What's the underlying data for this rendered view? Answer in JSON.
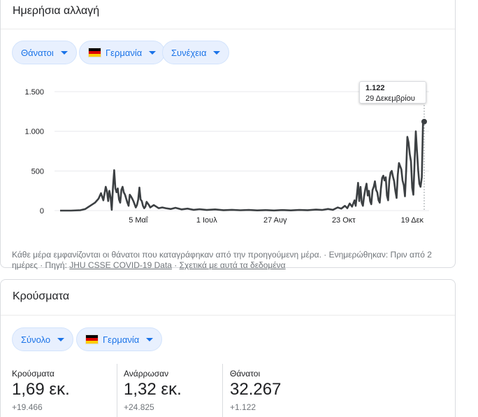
{
  "daily_card": {
    "title": "Ημερήσια αλλαγή",
    "chips": [
      {
        "label": "Θάνατοι",
        "flag": false
      },
      {
        "label": "Γερμανία",
        "flag": true
      },
      {
        "label": "Συνέχεια",
        "flag": false
      }
    ],
    "tooltip": {
      "value": "1.122",
      "date": "29 Δεκεμβρίου"
    },
    "footnote": {
      "text": "Κάθε μέρα εμφανίζονται οι θάνατοι που καταγράφηκαν από την προηγούμενη μέρα. · Ενημερώθηκαν: Πριν από 2 ημέρες · Πηγή: ",
      "source_link": "JHU CSSE COVID-19 Data",
      "separator": " · ",
      "about_link": "Σχετικά με αυτά τα δεδομένα"
    }
  },
  "chart_data": {
    "type": "line",
    "title": "",
    "xlabel": "",
    "ylabel": "",
    "x_start": "2020-03-01",
    "x_end": "2020-12-29",
    "x_ticks": [
      {
        "date": "2020-05-05",
        "label": "5 Μαΐ"
      },
      {
        "date": "2020-07-01",
        "label": "1 Ιουλ"
      },
      {
        "date": "2020-08-27",
        "label": "27 Αυγ"
      },
      {
        "date": "2020-10-23",
        "label": "23 Οκτ"
      },
      {
        "date": "2020-12-19",
        "label": "19 Δεκ"
      }
    ],
    "y_ticks": [
      {
        "value": 0,
        "label": "0"
      },
      {
        "value": 500,
        "label": "500"
      },
      {
        "value": 1000,
        "label": "1.000"
      },
      {
        "value": 1500,
        "label": "1.500"
      }
    ],
    "ylim": [
      0,
      1500
    ],
    "grid": true,
    "series": [
      {
        "color": "#3c4043",
        "points": [
          [
            "2020-03-01",
            0
          ],
          [
            "2020-03-10",
            0
          ],
          [
            "2020-03-18",
            5
          ],
          [
            "2020-03-22",
            20
          ],
          [
            "2020-03-26",
            60
          ],
          [
            "2020-03-30",
            100
          ],
          [
            "2020-04-02",
            150
          ],
          [
            "2020-04-04",
            220
          ],
          [
            "2020-04-06",
            130
          ],
          [
            "2020-04-08",
            300
          ],
          [
            "2020-04-09",
            240
          ],
          [
            "2020-04-10",
            120
          ],
          [
            "2020-04-11",
            250
          ],
          [
            "2020-04-12",
            170
          ],
          [
            "2020-04-13",
            10
          ],
          [
            "2020-04-14",
            300
          ],
          [
            "2020-04-15",
            510
          ],
          [
            "2020-04-16",
            280
          ],
          [
            "2020-04-17",
            230
          ],
          [
            "2020-04-18",
            280
          ],
          [
            "2020-04-19",
            140
          ],
          [
            "2020-04-20",
            100
          ],
          [
            "2020-04-21",
            260
          ],
          [
            "2020-04-22",
            300
          ],
          [
            "2020-04-23",
            230
          ],
          [
            "2020-04-24",
            200
          ],
          [
            "2020-04-25",
            150
          ],
          [
            "2020-04-26",
            100
          ],
          [
            "2020-04-27",
            60
          ],
          [
            "2020-04-28",
            200
          ],
          [
            "2020-04-29",
            180
          ],
          [
            "2020-04-30",
            150
          ],
          [
            "2020-05-01",
            120
          ],
          [
            "2020-05-02",
            80
          ],
          [
            "2020-05-03",
            40
          ],
          [
            "2020-05-04",
            70
          ],
          [
            "2020-05-05",
            140
          ],
          [
            "2020-05-06",
            290
          ],
          [
            "2020-05-07",
            140
          ],
          [
            "2020-05-08",
            120
          ],
          [
            "2020-05-09",
            60
          ],
          [
            "2020-05-10",
            30
          ],
          [
            "2020-05-11",
            50
          ],
          [
            "2020-05-12",
            110
          ],
          [
            "2020-05-13",
            90
          ],
          [
            "2020-05-14",
            70
          ],
          [
            "2020-05-15",
            40
          ],
          [
            "2020-05-18",
            70
          ],
          [
            "2020-05-20",
            50
          ],
          [
            "2020-05-22",
            30
          ],
          [
            "2020-05-25",
            40
          ],
          [
            "2020-05-28",
            30
          ],
          [
            "2020-06-01",
            20
          ],
          [
            "2020-06-05",
            35
          ],
          [
            "2020-06-10",
            15
          ],
          [
            "2020-06-15",
            25
          ],
          [
            "2020-06-20",
            10
          ],
          [
            "2020-06-25",
            18
          ],
          [
            "2020-07-01",
            8
          ],
          [
            "2020-07-08",
            15
          ],
          [
            "2020-07-15",
            5
          ],
          [
            "2020-07-22",
            10
          ],
          [
            "2020-07-29",
            4
          ],
          [
            "2020-08-05",
            8
          ],
          [
            "2020-08-12",
            3
          ],
          [
            "2020-08-19",
            6
          ],
          [
            "2020-08-26",
            2
          ],
          [
            "2020-09-02",
            7
          ],
          [
            "2020-09-09",
            3
          ],
          [
            "2020-09-16",
            8
          ],
          [
            "2020-09-23",
            5
          ],
          [
            "2020-09-30",
            12
          ],
          [
            "2020-10-05",
            8
          ],
          [
            "2020-10-10",
            20
          ],
          [
            "2020-10-14",
            10
          ],
          [
            "2020-10-18",
            40
          ],
          [
            "2020-10-21",
            25
          ],
          [
            "2020-10-24",
            60
          ],
          [
            "2020-10-26",
            30
          ],
          [
            "2020-10-28",
            90
          ],
          [
            "2020-10-30",
            50
          ],
          [
            "2020-11-01",
            130
          ],
          [
            "2020-11-02",
            60
          ],
          [
            "2020-11-03",
            200
          ],
          [
            "2020-11-04",
            350
          ],
          [
            "2020-11-05",
            120
          ],
          [
            "2020-11-06",
            300
          ],
          [
            "2020-11-07",
            100
          ],
          [
            "2020-11-08",
            60
          ],
          [
            "2020-11-09",
            180
          ],
          [
            "2020-11-10",
            270
          ],
          [
            "2020-11-11",
            340
          ],
          [
            "2020-11-12",
            190
          ],
          [
            "2020-11-13",
            250
          ],
          [
            "2020-11-14",
            120
          ],
          [
            "2020-11-15",
            80
          ],
          [
            "2020-11-16",
            260
          ],
          [
            "2020-11-17",
            300
          ],
          [
            "2020-11-18",
            370
          ],
          [
            "2020-11-19",
            260
          ],
          [
            "2020-11-20",
            230
          ],
          [
            "2020-11-21",
            130
          ],
          [
            "2020-11-22",
            100
          ],
          [
            "2020-11-23",
            280
          ],
          [
            "2020-11-24",
            410
          ],
          [
            "2020-11-25",
            440
          ],
          [
            "2020-11-26",
            380
          ],
          [
            "2020-11-27",
            420
          ],
          [
            "2020-11-28",
            190
          ],
          [
            "2020-11-29",
            130
          ],
          [
            "2020-11-30",
            380
          ],
          [
            "2020-12-01",
            480
          ],
          [
            "2020-12-02",
            500
          ],
          [
            "2020-12-03",
            430
          ],
          [
            "2020-12-04",
            370
          ],
          [
            "2020-12-05",
            250
          ],
          [
            "2020-12-06",
            160
          ],
          [
            "2020-12-07",
            450
          ],
          [
            "2020-12-08",
            600
          ],
          [
            "2020-12-09",
            560
          ],
          [
            "2020-12-10",
            520
          ],
          [
            "2020-12-11",
            380
          ],
          [
            "2020-12-12",
            320
          ],
          [
            "2020-12-13",
            180
          ],
          [
            "2020-12-14",
            500
          ],
          [
            "2020-12-15",
            930
          ],
          [
            "2020-12-16",
            860
          ],
          [
            "2020-12-17",
            710
          ],
          [
            "2020-12-18",
            620
          ],
          [
            "2020-12-19",
            290
          ],
          [
            "2020-12-20",
            200
          ],
          [
            "2020-12-21",
            600
          ],
          [
            "2020-12-22",
            1000
          ],
          [
            "2020-12-23",
            750
          ],
          [
            "2020-12-24",
            510
          ],
          [
            "2020-12-25",
            340
          ],
          [
            "2020-12-26",
            300
          ],
          [
            "2020-12-27",
            420
          ],
          [
            "2020-12-28",
            1122
          ],
          [
            "2020-12-29",
            1122
          ]
        ]
      }
    ],
    "highlight_point": {
      "date": "2020-12-29",
      "value": 1122
    }
  },
  "cases_card": {
    "title": "Κρούσματα",
    "chips": [
      {
        "label": "Σύνολο",
        "flag": false
      },
      {
        "label": "Γερμανία",
        "flag": true
      }
    ],
    "stats": [
      {
        "label": "Κρούσματα",
        "value": "1,69 εκ.",
        "delta": "+19.466"
      },
      {
        "label": "Ανάρρωσαν",
        "value": "1,32 εκ.",
        "delta": "+24.825"
      },
      {
        "label": "Θάνατοι",
        "value": "32.267",
        "delta": "+1.122"
      }
    ]
  }
}
